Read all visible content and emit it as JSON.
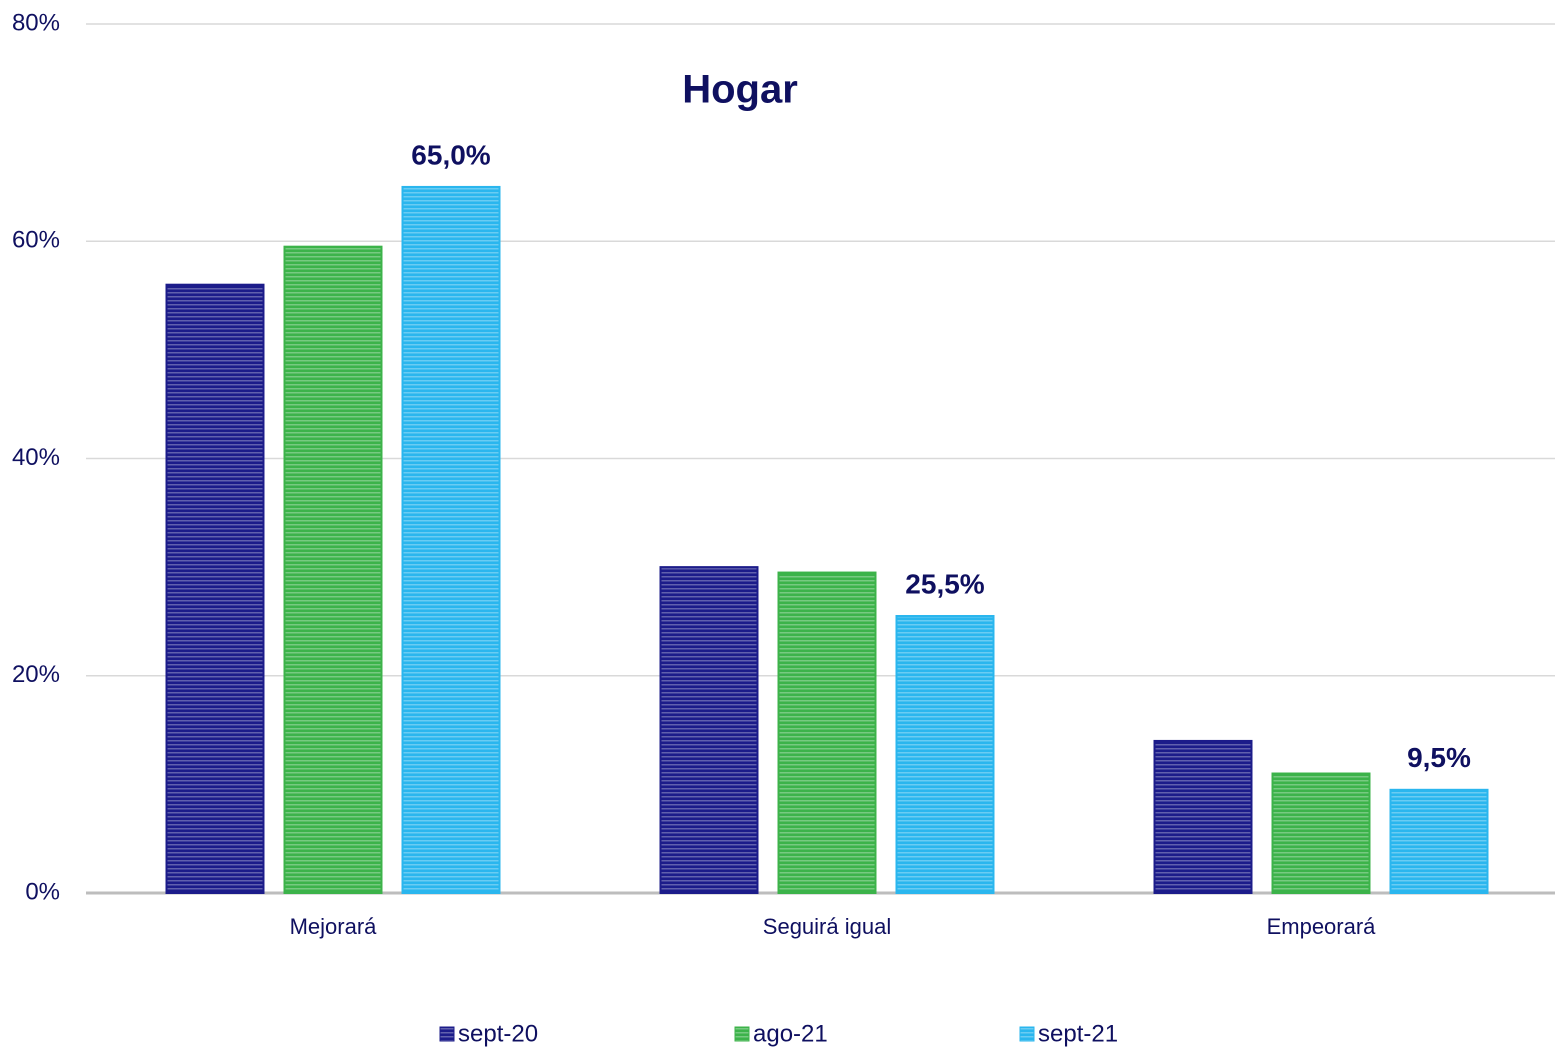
{
  "chart_data": {
    "type": "bar",
    "title": "Hogar",
    "categories": [
      "Mejorará",
      "Seguirá igual",
      "Empeorará"
    ],
    "series": [
      {
        "name": "sept-20",
        "color": "#1c1c8a",
        "values": [
          56,
          30,
          14
        ]
      },
      {
        "name": "ago-21",
        "color": "#3cb34a",
        "values": [
          59.5,
          29.5,
          11
        ]
      },
      {
        "name": "sept-21",
        "color": "#2ab6ee",
        "values": [
          65.0,
          25.5,
          9.5
        ],
        "value_labels": [
          "65,0%",
          "25,5%",
          "9,5%"
        ]
      }
    ],
    "ylim": [
      0,
      80
    ],
    "yticks": [
      {
        "value": 0,
        "label": "0%"
      },
      {
        "value": 20,
        "label": "20%"
      },
      {
        "value": 40,
        "label": "40%"
      },
      {
        "value": 60,
        "label": "60%"
      },
      {
        "value": 80,
        "label": "80%"
      }
    ],
    "grid": true,
    "legend": "bottom"
  }
}
